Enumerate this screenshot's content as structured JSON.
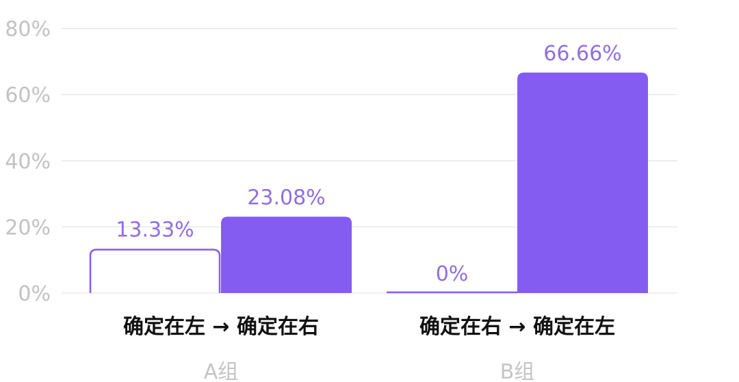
{
  "chart_data": {
    "type": "bar",
    "y_ticks": [
      "0%",
      "20%",
      "40%",
      "60%",
      "80%"
    ],
    "ylim": [
      0,
      80
    ],
    "grid": true,
    "colors": {
      "filled": "#855cf2",
      "outline": "#855cf2",
      "value_label": "#8f6ee6",
      "tick_label": "#c2c2c2",
      "grid": "#e8e8e8",
      "category_label": "#111111",
      "group_label": "#c4c4c4"
    },
    "groups": [
      {
        "name": "A组",
        "category": "确定在左 → 确定在右",
        "bars": [
          {
            "value": 13.33,
            "label": "13.33%",
            "style": "outline"
          },
          {
            "value": 23.08,
            "label": "23.08%",
            "style": "filled"
          }
        ]
      },
      {
        "name": "B组",
        "category": "确定在右 → 确定在左",
        "bars": [
          {
            "value": 0,
            "label": "0%",
            "style": "outline"
          },
          {
            "value": 66.66,
            "label": "66.66%",
            "style": "filled"
          }
        ]
      }
    ]
  }
}
